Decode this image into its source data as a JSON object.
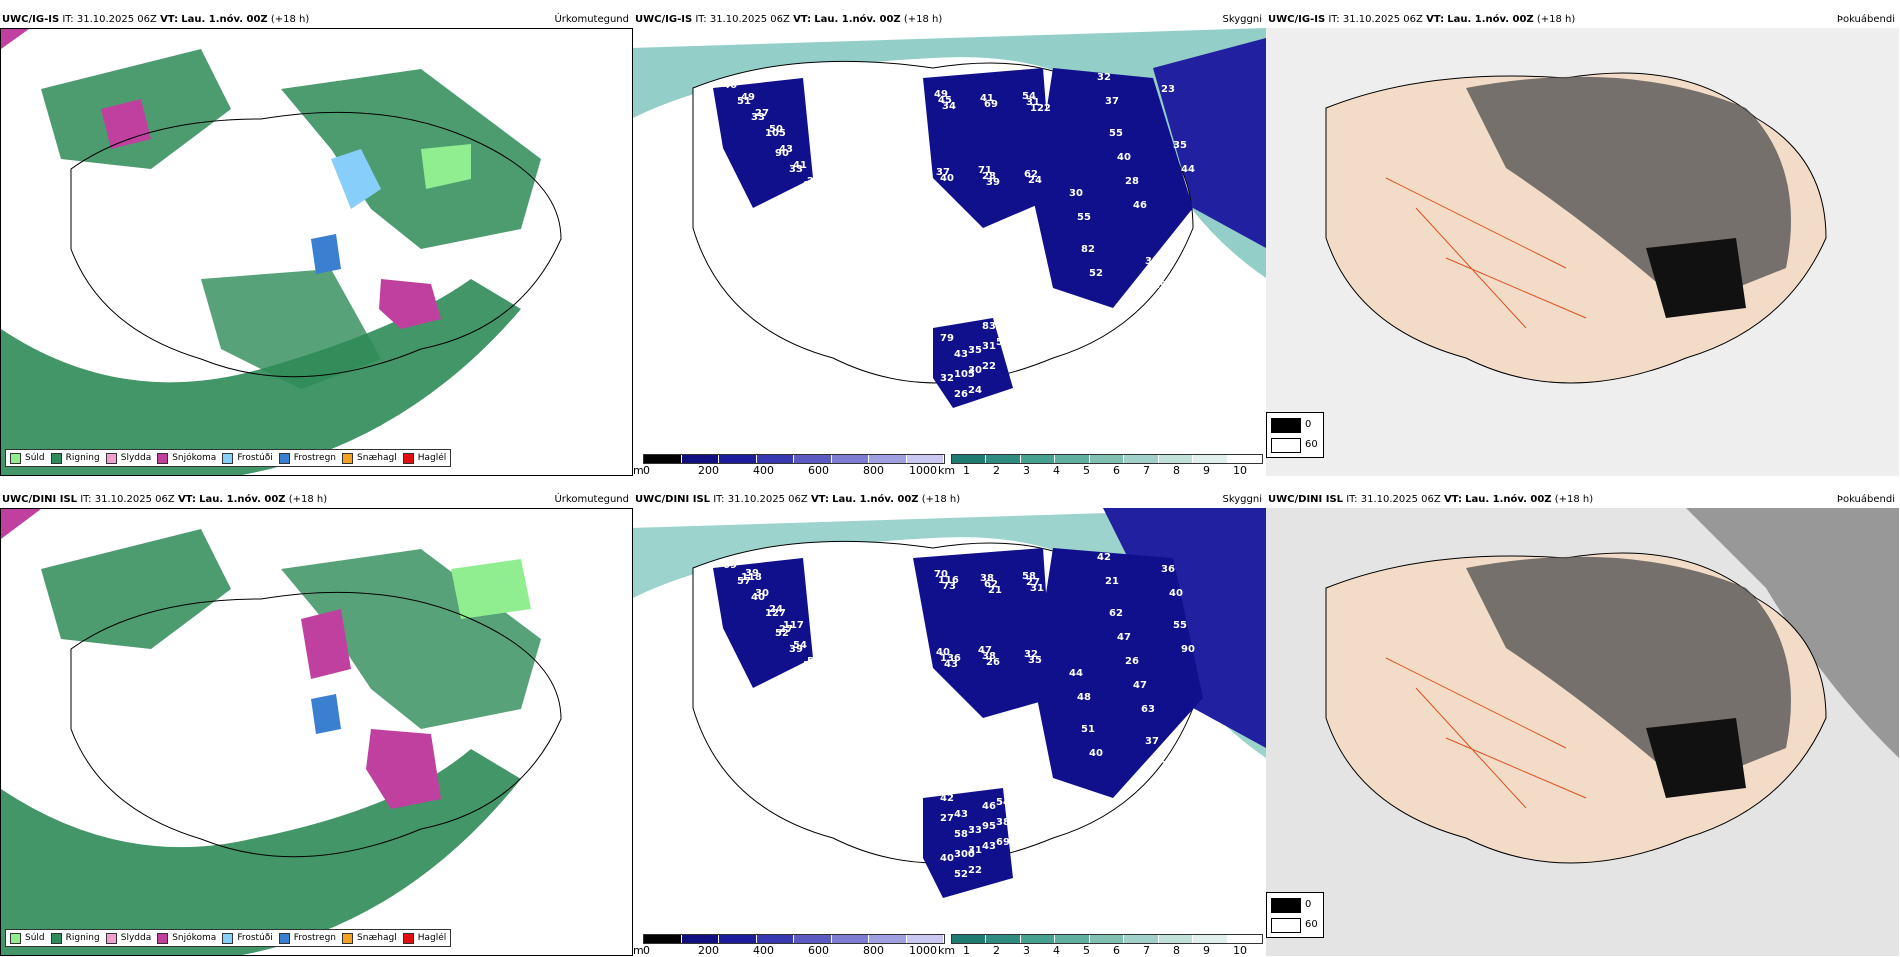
{
  "rows": [
    {
      "model": "UWC/IG-IS",
      "it_label": "IT:",
      "it_value": "31.10.2025 06Z",
      "vt_label": "VT:",
      "vt_value": "Lau. 1.nóv. 00Z",
      "lead": "(+18 h)",
      "titles": [
        "Úrkomutegund",
        "Skyggni",
        "Þokuábendi"
      ],
      "height_labels": [
        "46",
        "49",
        "55",
        "43",
        "90",
        "71",
        "82",
        "83",
        "51",
        "54",
        "35",
        "32",
        "33",
        "37",
        "31",
        "35",
        "33",
        "41",
        "40",
        "53",
        "89",
        "62",
        "52",
        "105",
        "105",
        "45",
        "44",
        "31",
        "40",
        "28",
        "29",
        "27",
        "43",
        "31",
        "28",
        "30",
        "49",
        "40",
        "32",
        "51",
        "41",
        "69",
        "30",
        "26",
        "27",
        "24",
        "23",
        "22",
        "21",
        "34",
        "46",
        "79",
        "50",
        "39",
        "37",
        "24",
        "48",
        "122",
        "55"
      ],
      "height_color": "#ffffff"
    },
    {
      "model": "UWC/DINI ISL",
      "it_label": "IT:",
      "it_value": "31.10.2025 06Z",
      "vt_label": "VT:",
      "vt_value": "Lau. 1.nóv. 00Z",
      "lead": "(+18 h)",
      "titles": [
        "Úrkomutegund",
        "Skyggni",
        "Þokuábendi"
      ],
      "height_labels": [
        "69",
        "70",
        "62",
        "58",
        "52",
        "47",
        "51",
        "46",
        "57",
        "58",
        "55",
        "40",
        "39",
        "40",
        "37",
        "33",
        "40",
        "38",
        "47",
        "54",
        "36",
        "32",
        "40",
        "300",
        "127",
        "116",
        "90",
        "95",
        "98",
        "38",
        "32",
        "42",
        "27",
        "27",
        "26",
        "31",
        "118",
        "136",
        "42",
        "38",
        "54",
        "62",
        "44",
        "52",
        "30",
        "35",
        "36",
        "43",
        "56",
        "73",
        "47",
        "27",
        "24",
        "26",
        "21",
        "22",
        "33",
        "31",
        "48",
        "69",
        "117",
        "43",
        "40",
        "43",
        "39",
        "21",
        "63"
      ],
      "height_color": "#ffffff"
    }
  ],
  "precip_legend": [
    {
      "label": "Súld",
      "color": "#90ee90"
    },
    {
      "label": "Rigning",
      "color": "#2e8b57"
    },
    {
      "label": "Slydda",
      "color": "#f0a0d0"
    },
    {
      "label": "Snjókoma",
      "color": "#c040a0"
    },
    {
      "label": "Frostúði",
      "color": "#87cefa"
    },
    {
      "label": "Frostregn",
      "color": "#3a7fd0"
    },
    {
      "label": "Snæhagl",
      "color": "#f4a020"
    },
    {
      "label": "Haglél",
      "color": "#e01010"
    }
  ],
  "height_scale": {
    "unit": "m",
    "ticks": [
      "0",
      "200",
      "400",
      "600",
      "800",
      "1000"
    ]
  },
  "vis_scale": {
    "unit": "km",
    "ticks": [
      "1",
      "2",
      "3",
      "4",
      "5",
      "6",
      "7",
      "8",
      "9",
      "10"
    ]
  },
  "cloud_key": {
    "dark": "0",
    "light": "60"
  },
  "colors": {
    "rain": "#2e8b57",
    "drizzle": "#90ee90",
    "snow": "#c040a0",
    "sleet": "#f0a0d0",
    "frzrain": "#3a7fd0",
    "frzdrz": "#87cefa",
    "low": "#10108c",
    "teal": "#3aa89a",
    "roads": "#e07020"
  }
}
